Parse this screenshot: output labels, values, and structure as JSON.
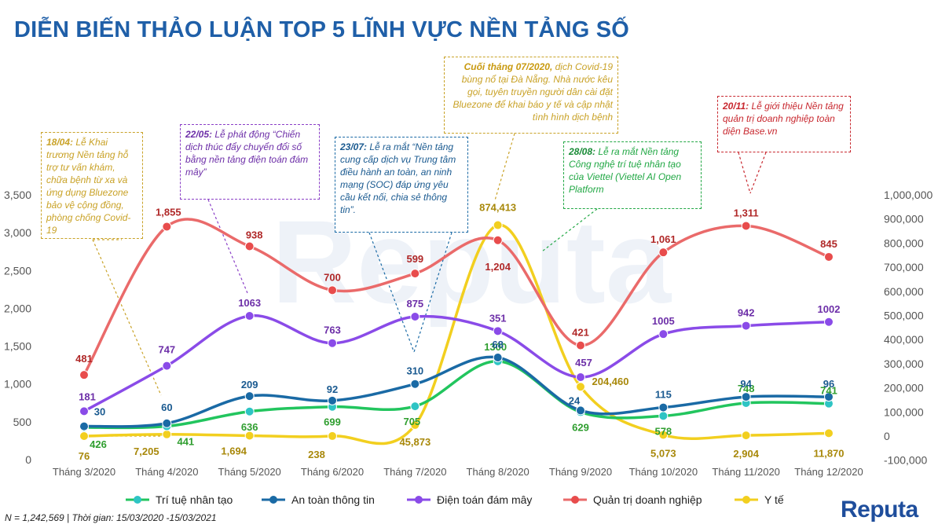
{
  "title": "DIỄN BIẾN THẢO LUẬN TOP 5 LĨNH VỰC NỀN TẢNG SỐ",
  "footer": "N = 1,242,569 | Thời gian: 15/03/2020 -15/03/2021",
  "logo": "Reputa",
  "watermark": "Reputa",
  "chart_data": {
    "type": "line",
    "categories": [
      "Tháng 3/2020",
      "Tháng 4/2020",
      "Tháng 5/2020",
      "Tháng 6/2020",
      "Tháng 7/2020",
      "Tháng 8/2020",
      "Tháng 9/2020",
      "Tháng 10/2020",
      "Tháng 11/2020",
      "Tháng 12/2020"
    ],
    "left_axis": {
      "ticks": [
        "0",
        "500",
        "1,000",
        "1,500",
        "2,000",
        "2,500",
        "3,000",
        "3,500"
      ],
      "ylim": [
        0,
        3500
      ]
    },
    "right_axis": {
      "ticks": [
        "-100,000",
        "0",
        "100,000",
        "200,000",
        "300,000",
        "400,000",
        "500,000",
        "600,000",
        "700,000",
        "800,000",
        "900,000",
        "1,000,000"
      ],
      "ylim": [
        -100000,
        1000000
      ]
    },
    "legend_position": "bottom",
    "series": [
      {
        "name": "Trí tuệ nhân tạo",
        "color": "#22c55e",
        "marker": "#2ec4c4",
        "axis": "left",
        "labels": [
          "426",
          "441",
          "636",
          "699",
          "705",
          "1300",
          "629",
          "578",
          "748",
          "741"
        ],
        "values": [
          426,
          441,
          636,
          699,
          705,
          1300,
          629,
          578,
          748,
          741
        ]
      },
      {
        "name": "An toàn thông tin",
        "color": "#1a6aa5",
        "marker": "#1a6aa5",
        "axis": "left",
        "labels": [
          "30",
          "60",
          "209",
          "92",
          "310",
          "68",
          "24",
          "115",
          "94",
          "96"
        ],
        "values": [
          440,
          480,
          840,
          780,
          1000,
          1350,
          650,
          690,
          830,
          830
        ]
      },
      {
        "name": "Điện toán đám mây",
        "color": "#8a4be8",
        "marker": "#8a4be8",
        "axis": "left",
        "labels": [
          "181",
          "747",
          "1063",
          "763",
          "875",
          "351",
          "457",
          "1005",
          "942",
          "1002"
        ],
        "values": [
          640,
          1240,
          1900,
          1540,
          1890,
          1700,
          1090,
          1660,
          1770,
          1820
        ]
      },
      {
        "name": "Quản trị doanh nghiệp",
        "color": "#ea6a6a",
        "marker": "#e84c4c",
        "axis": "left",
        "labels": [
          "481",
          "1,855",
          "938",
          "700",
          "599",
          "1,204",
          "421",
          "1,061",
          "1,311",
          "845"
        ],
        "values": [
          1120,
          3080,
          2820,
          2240,
          2460,
          2900,
          1510,
          2740,
          3090,
          2680
        ]
      },
      {
        "name": "Y tế",
        "color": "#f2cf1f",
        "marker": "#f2cf1f",
        "axis": "right",
        "labels": [
          "76",
          "7,205",
          "1,694",
          "238",
          "45,873",
          "874,413",
          "204,460",
          "5,073",
          "2,904",
          "11,870"
        ],
        "values": [
          76,
          7205,
          1694,
          238,
          45873,
          874413,
          204460,
          5073,
          2904,
          11870
        ]
      }
    ]
  },
  "annotations": [
    {
      "date": "18/04:",
      "text": "Lễ Khai trương Nền tảng hỗ trợ tư vấn khám, chữa bệnh từ xa và ứng dụng Bluezone bảo vệ cộng đồng, phòng chống Covid-19",
      "color": "#c9a227",
      "date_color": "#c9a227",
      "text_color": "#c9a227"
    },
    {
      "date": "22/05:",
      "text": "Lễ phát động “Chiến dịch thúc đẩy chuyển đổi số bằng nền tảng điện toán đám mây”",
      "color": "#8a3fc7",
      "date_color": "#6d2fa8",
      "text_color": "#6d2fa8"
    },
    {
      "date": "23/07:",
      "text": "Lễ ra mắt “Nền tảng cung cấp dịch vụ Trung tâm điều hành an toàn, an ninh mạng (SOC) đáp ứng yêu cầu kết nối, chia sẻ thông tin”.",
      "color": "#1a6aa5",
      "date_color": "#1a5a90",
      "text_color": "#1a5a90"
    },
    {
      "date": "Cuối tháng 07/2020,",
      "text": "dịch Covid-19 bùng nổ tại Đà Nẵng. Nhà nước kêu gọi, tuyên truyền người dân cài đặt Bluezone để khai báo y tế và cập nhật tình hình dịch bệnh",
      "color": "#c9a227",
      "date_color": "#c99a10",
      "text_color": "#c9a227"
    },
    {
      "date": "28/08:",
      "text": "Lễ ra mắt Nền tảng Công nghệ trí tuệ nhân tạo của Viettel (Viettel AI Open Platform",
      "color": "#22a845",
      "date_color": "#178a35",
      "text_color": "#22a845"
    },
    {
      "date": "20/11:",
      "text": "Lễ giới thiệu Nền tảng quản trị doanh nghiệp toàn diện Base.vn",
      "color": "#c8282f",
      "date_color": "#c8282f",
      "text_color": "#c8282f"
    }
  ]
}
